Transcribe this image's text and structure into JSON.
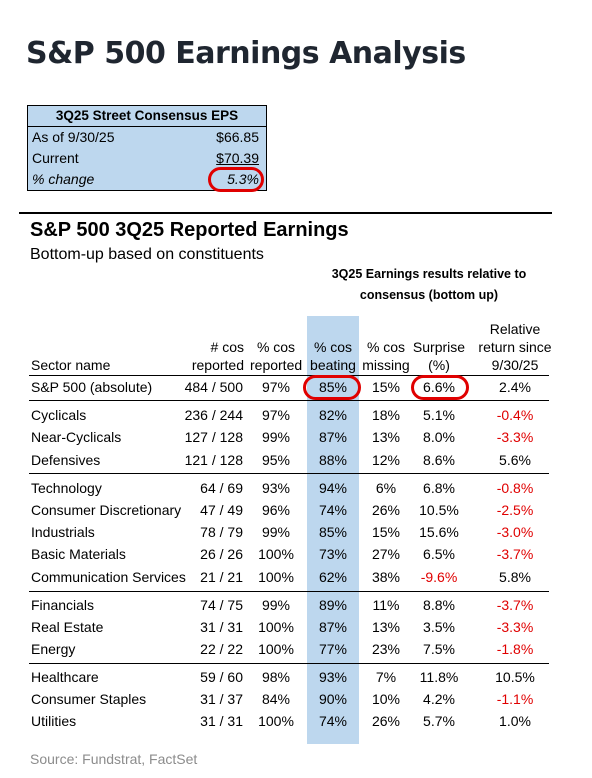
{
  "title": "S&P 500 Earnings Analysis",
  "eps_box": {
    "header": "3Q25 Street Consensus EPS",
    "rows": [
      {
        "label": "As of 9/30/25",
        "value": "$66.85"
      },
      {
        "label": "Current",
        "value": "$70.39"
      },
      {
        "label": "% change",
        "value": "5.3%"
      }
    ]
  },
  "section": {
    "title": "S&P 500 3Q25 Reported Earnings",
    "subtitle": "Bottom-up based on constituents",
    "group_header": "3Q25 Earnings results relative to consensus (bottom up)"
  },
  "columns": {
    "sector": "Sector name",
    "reported": "# cos reported",
    "pct_reported": "% cos reported",
    "pct_beating": "% cos beating",
    "pct_missing": "% cos missing",
    "surprise": "Surprise (%)",
    "rel_return": "Relative return since 9/30/25"
  },
  "highlight_color": "#bdd7ee",
  "negative_color": "#e00000",
  "rows": [
    {
      "sector": "S&P 500 (absolute)",
      "reported": "484 / 500",
      "pct_reported": "97%",
      "pct_beating": "85%",
      "pct_missing": "15%",
      "surprise": "6.6%",
      "rel_return": "2.4%"
    },
    {
      "sector": "Cyclicals",
      "reported": "236 / 244",
      "pct_reported": "97%",
      "pct_beating": "82%",
      "pct_missing": "18%",
      "surprise": "5.1%",
      "rel_return": "-0.4%"
    },
    {
      "sector": "Near-Cyclicals",
      "reported": "127 / 128",
      "pct_reported": "99%",
      "pct_beating": "87%",
      "pct_missing": "13%",
      "surprise": "8.0%",
      "rel_return": "-3.3%"
    },
    {
      "sector": "Defensives",
      "reported": "121 / 128",
      "pct_reported": "95%",
      "pct_beating": "88%",
      "pct_missing": "12%",
      "surprise": "8.6%",
      "rel_return": "5.6%"
    },
    {
      "sector": "Technology",
      "reported": "64 / 69",
      "pct_reported": "93%",
      "pct_beating": "94%",
      "pct_missing": "6%",
      "surprise": "6.8%",
      "rel_return": "-0.8%"
    },
    {
      "sector": "Consumer Discretionary",
      "reported": "47 / 49",
      "pct_reported": "96%",
      "pct_beating": "74%",
      "pct_missing": "26%",
      "surprise": "10.5%",
      "rel_return": "-2.5%"
    },
    {
      "sector": "Industrials",
      "reported": "78 / 79",
      "pct_reported": "99%",
      "pct_beating": "85%",
      "pct_missing": "15%",
      "surprise": "15.6%",
      "rel_return": "-3.0%"
    },
    {
      "sector": "Basic Materials",
      "reported": "26 / 26",
      "pct_reported": "100%",
      "pct_beating": "73%",
      "pct_missing": "27%",
      "surprise": "6.5%",
      "rel_return": "-3.7%"
    },
    {
      "sector": "Communication Services",
      "reported": "21 / 21",
      "pct_reported": "100%",
      "pct_beating": "62%",
      "pct_missing": "38%",
      "surprise": "-9.6%",
      "rel_return": "5.8%"
    },
    {
      "sector": "Financials",
      "reported": "74 / 75",
      "pct_reported": "99%",
      "pct_beating": "89%",
      "pct_missing": "11%",
      "surprise": "8.8%",
      "rel_return": "-3.7%"
    },
    {
      "sector": "Real Estate",
      "reported": "31 / 31",
      "pct_reported": "100%",
      "pct_beating": "87%",
      "pct_missing": "13%",
      "surprise": "3.5%",
      "rel_return": "-3.3%"
    },
    {
      "sector": "Energy",
      "reported": "22 / 22",
      "pct_reported": "100%",
      "pct_beating": "77%",
      "pct_missing": "23%",
      "surprise": "7.5%",
      "rel_return": "-1.8%"
    },
    {
      "sector": "Healthcare",
      "reported": "59 / 60",
      "pct_reported": "98%",
      "pct_beating": "93%",
      "pct_missing": "7%",
      "surprise": "11.8%",
      "rel_return": "10.5%"
    },
    {
      "sector": "Consumer Staples",
      "reported": "31 / 37",
      "pct_reported": "84%",
      "pct_beating": "90%",
      "pct_missing": "10%",
      "surprise": "4.2%",
      "rel_return": "-1.1%"
    },
    {
      "sector": "Utilities",
      "reported": "31 / 31",
      "pct_reported": "100%",
      "pct_beating": "74%",
      "pct_missing": "26%",
      "surprise": "5.7%",
      "rel_return": "1.0%"
    }
  ],
  "source": "Source: Fundstrat, FactSet"
}
